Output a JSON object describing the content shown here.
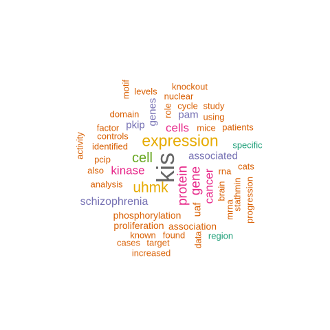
{
  "colors": {
    "orange": "#d95f02",
    "purple": "#7570b3",
    "magenta": "#e7298a",
    "green": "#66a61e",
    "gold": "#e6ab02",
    "teal": "#1b9e77",
    "gray": "#666666"
  },
  "words": [
    {
      "text": "kis",
      "color": "gray",
      "weight": 12
    },
    {
      "text": "expression",
      "color": "gold",
      "weight": 9
    },
    {
      "text": "uhmk",
      "color": "gold",
      "weight": 7
    },
    {
      "text": "cell",
      "color": "green",
      "weight": 7
    },
    {
      "text": "protein",
      "color": "magenta",
      "weight": 6
    },
    {
      "text": "gene",
      "color": "magenta",
      "weight": 6
    },
    {
      "text": "cancer",
      "color": "magenta",
      "weight": 5
    },
    {
      "text": "kinase",
      "color": "magenta",
      "weight": 5
    },
    {
      "text": "cells",
      "color": "magenta",
      "weight": 5
    },
    {
      "text": "schizophrenia",
      "color": "purple",
      "weight": 4
    },
    {
      "text": "associated",
      "color": "purple",
      "weight": 4
    },
    {
      "text": "genes",
      "color": "purple",
      "weight": 4
    },
    {
      "text": "pkip",
      "color": "purple",
      "weight": 4
    },
    {
      "text": "pam",
      "color": "purple",
      "weight": 4
    },
    {
      "text": "uaf",
      "color": "orange",
      "weight": 4
    },
    {
      "text": "phosphorylation",
      "color": "orange",
      "weight": 3
    },
    {
      "text": "proliferation",
      "color": "orange",
      "weight": 3
    },
    {
      "text": "association",
      "color": "orange",
      "weight": 3
    },
    {
      "text": "identified",
      "color": "orange",
      "weight": 3
    },
    {
      "text": "controls",
      "color": "orange",
      "weight": 3
    },
    {
      "text": "analysis",
      "color": "orange",
      "weight": 3
    },
    {
      "text": "knockout",
      "color": "orange",
      "weight": 2
    },
    {
      "text": "nuclear",
      "color": "orange",
      "weight": 2
    },
    {
      "text": "levels",
      "color": "orange",
      "weight": 2
    },
    {
      "text": "motif",
      "color": "orange",
      "weight": 2
    },
    {
      "text": "cycle",
      "color": "orange",
      "weight": 2
    },
    {
      "text": "study",
      "color": "orange",
      "weight": 2
    },
    {
      "text": "role",
      "color": "orange",
      "weight": 2
    },
    {
      "text": "domain",
      "color": "orange",
      "weight": 2
    },
    {
      "text": "using",
      "color": "orange",
      "weight": 2
    },
    {
      "text": "factor",
      "color": "orange",
      "weight": 2
    },
    {
      "text": "mice",
      "color": "orange",
      "weight": 2
    },
    {
      "text": "patients",
      "color": "orange",
      "weight": 2
    },
    {
      "text": "activity",
      "color": "orange",
      "weight": 2
    },
    {
      "text": "specific",
      "color": "teal",
      "weight": 2
    },
    {
      "text": "pcip",
      "color": "orange",
      "weight": 2
    },
    {
      "text": "cats",
      "color": "orange",
      "weight": 2
    },
    {
      "text": "also",
      "color": "orange",
      "weight": 2
    },
    {
      "text": "rna",
      "color": "orange",
      "weight": 2
    },
    {
      "text": "brain",
      "color": "orange",
      "weight": 2
    },
    {
      "text": "stathmin",
      "color": "orange",
      "weight": 2
    },
    {
      "text": "progression",
      "color": "orange",
      "weight": 2
    },
    {
      "text": "mrna",
      "color": "orange",
      "weight": 2
    },
    {
      "text": "known",
      "color": "orange",
      "weight": 2
    },
    {
      "text": "found",
      "color": "orange",
      "weight": 2
    },
    {
      "text": "data",
      "color": "orange",
      "weight": 2
    },
    {
      "text": "region",
      "color": "teal",
      "weight": 2
    },
    {
      "text": "cases",
      "color": "orange",
      "weight": 2
    },
    {
      "text": "target",
      "color": "orange",
      "weight": 2
    },
    {
      "text": "increased",
      "color": "orange",
      "weight": 2
    }
  ]
}
